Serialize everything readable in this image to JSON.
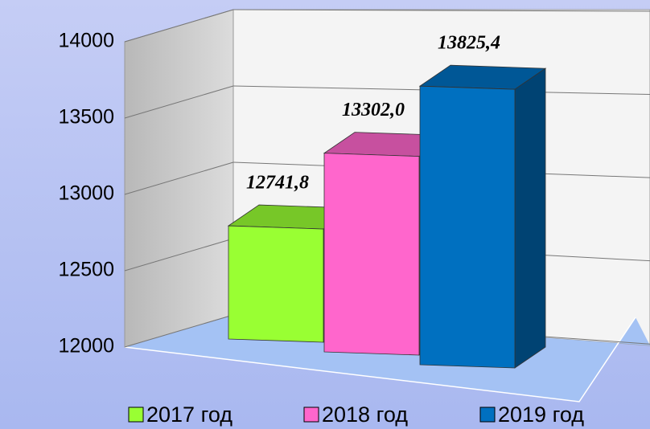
{
  "chart_data": {
    "type": "bar3d",
    "categories": [
      null
    ],
    "series": [
      {
        "name": "2017 год",
        "color": "#99ff33",
        "values": [
          12741.8
        ],
        "value_labels": [
          "12741,8"
        ]
      },
      {
        "name": "2018 год",
        "color": "#ff66cc",
        "values": [
          13302.0
        ],
        "value_labels": [
          "13302,0"
        ]
      },
      {
        "name": "2019 год",
        "color": "#0070c0",
        "values": [
          13825.4
        ],
        "value_labels": [
          "13825,4"
        ]
      }
    ],
    "ylim": [
      12000,
      14000
    ],
    "yticks": [
      12000,
      12500,
      13000,
      13500,
      14000
    ],
    "grid": true,
    "legend": "bottom"
  }
}
